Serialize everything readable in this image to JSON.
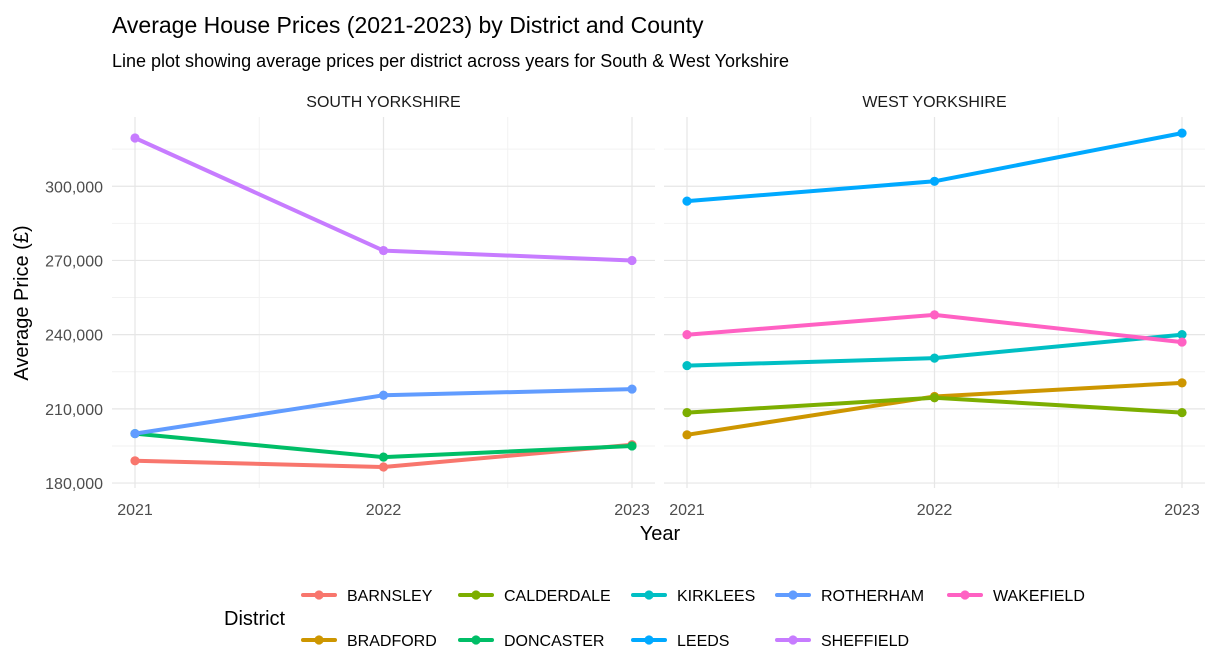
{
  "chart_data": {
    "type": "line",
    "title": "Average House Prices (2021-2023) by District and County",
    "subtitle": "Line plot showing average prices per district across years for South & West Yorkshire",
    "xlabel": "Year",
    "ylabel": "Average Price (£)",
    "x": [
      2021,
      2022,
      2023
    ],
    "x_tick_labels": [
      "2021",
      "2022",
      "2023"
    ],
    "y_tick_labels": [
      "180,000",
      "210,000",
      "240,000",
      "270,000",
      "300,000"
    ],
    "y_ticks": [
      180000,
      210000,
      240000,
      270000,
      300000
    ],
    "ylim": [
      178000,
      328000
    ],
    "grid": true,
    "legend_title": "District",
    "legend_position": "bottom",
    "legend": [
      {
        "name": "BARNSLEY",
        "color": "#F8766D"
      },
      {
        "name": "BRADFORD",
        "color": "#CD9600"
      },
      {
        "name": "CALDERDALE",
        "color": "#7CAE00"
      },
      {
        "name": "DONCASTER",
        "color": "#00BE67"
      },
      {
        "name": "KIRKLEES",
        "color": "#00BFC4"
      },
      {
        "name": "LEEDS",
        "color": "#00A9FF"
      },
      {
        "name": "ROTHERHAM",
        "color": "#619CFF"
      },
      {
        "name": "SHEFFIELD",
        "color": "#C77CFF"
      },
      {
        "name": "WAKEFIELD",
        "color": "#FF61C3"
      }
    ],
    "panels": [
      {
        "name": "SOUTH YORKSHIRE",
        "series": [
          {
            "name": "BARNSLEY",
            "values": [
              189000,
              186500,
              195500
            ]
          },
          {
            "name": "DONCASTER",
            "values": [
              200000,
              190500,
              195000
            ]
          },
          {
            "name": "ROTHERHAM",
            "values": [
              200000,
              215500,
              218000
            ]
          },
          {
            "name": "SHEFFIELD",
            "values": [
              319500,
              274000,
              270000
            ]
          }
        ]
      },
      {
        "name": "WEST YORKSHIRE",
        "series": [
          {
            "name": "BRADFORD",
            "values": [
              199500,
              215000,
              220500
            ]
          },
          {
            "name": "CALDERDALE",
            "values": [
              208500,
              214500,
              208500
            ]
          },
          {
            "name": "KIRKLEES",
            "values": [
              227500,
              230500,
              240000
            ]
          },
          {
            "name": "LEEDS",
            "values": [
              294000,
              302000,
              321500
            ]
          },
          {
            "name": "WAKEFIELD",
            "values": [
              240000,
              248000,
              237000
            ]
          }
        ]
      }
    ]
  }
}
